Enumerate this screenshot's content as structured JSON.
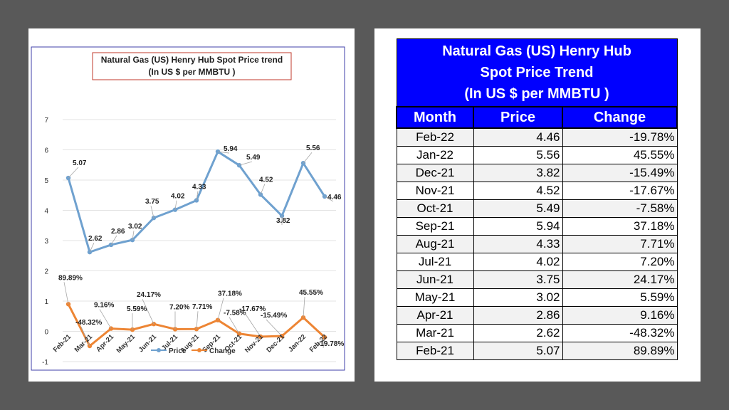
{
  "chart_data": {
    "type": "line",
    "title_lines": [
      "Natural Gas (US) Henry Hub Spot Price trend",
      "(In US $ per MMBTU )"
    ],
    "categories": [
      "Feb-21",
      "Mar-21",
      "Apr-21",
      "May-21",
      "Jun-21",
      "Jul-21",
      "Aug-21",
      "Sep-21",
      "Oct-21",
      "Nov-21",
      "Dec-21",
      "Jan-22",
      "Feb-22"
    ],
    "series": [
      {
        "name": "Price",
        "color": "#6fa1cf",
        "values": [
          5.07,
          2.62,
          2.86,
          3.02,
          3.75,
          4.02,
          4.33,
          5.94,
          5.49,
          4.52,
          3.82,
          5.56,
          4.46
        ],
        "labels": [
          "5.07",
          "2.62",
          "2.86",
          "3.02",
          "3.75",
          "4.02",
          "4.33",
          "5.94",
          "5.49",
          "4.52",
          "3.82",
          "5.56",
          "4.46"
        ]
      },
      {
        "name": "Change",
        "color": "#ed8534",
        "values": [
          0.8989,
          -0.4832,
          0.0916,
          0.0559,
          0.2417,
          0.072,
          0.0771,
          0.3718,
          -0.0758,
          -0.1767,
          -0.1549,
          0.4555,
          -0.1978
        ],
        "labels": [
          "89.89%",
          "-48.32%",
          "9.16%",
          "5.59%",
          "24.17%",
          "7.20%",
          "7.71%",
          "37.18%",
          "-7.58%",
          "-17.67%",
          "-15.49%",
          "45.55%",
          "-19.78%"
        ]
      }
    ],
    "yticks": [
      "-1",
      "0",
      "1",
      "2",
      "3",
      "4",
      "5",
      "6",
      "7"
    ],
    "ylim": [
      -1,
      7
    ],
    "grid": true,
    "legend": "bottom"
  },
  "table": {
    "title_lines": [
      "Natural Gas (US) Henry Hub",
      "Spot Price Trend",
      "(In US $ per MMBTU )"
    ],
    "headers": [
      "Month",
      "Price",
      "Change"
    ],
    "rows": [
      {
        "month": "Feb-22",
        "price": "4.46",
        "change": "-19.78%"
      },
      {
        "month": "Jan-22",
        "price": "5.56",
        "change": "45.55%"
      },
      {
        "month": "Dec-21",
        "price": "3.82",
        "change": "-15.49%"
      },
      {
        "month": "Nov-21",
        "price": "4.52",
        "change": "-17.67%"
      },
      {
        "month": "Oct-21",
        "price": "5.49",
        "change": "-7.58%"
      },
      {
        "month": "Sep-21",
        "price": "5.94",
        "change": "37.18%"
      },
      {
        "month": "Aug-21",
        "price": "4.33",
        "change": "7.71%"
      },
      {
        "month": "Jul-21",
        "price": "4.02",
        "change": "7.20%"
      },
      {
        "month": "Jun-21",
        "price": "3.75",
        "change": "24.17%"
      },
      {
        "month": "May-21",
        "price": "3.02",
        "change": "5.59%"
      },
      {
        "month": "Apr-21",
        "price": "2.86",
        "change": "9.16%"
      },
      {
        "month": "Mar-21",
        "price": "2.62",
        "change": "-48.32%"
      },
      {
        "month": "Feb-21",
        "price": "5.07",
        "change": "89.89%"
      }
    ],
    "header_color": "#0000ff"
  }
}
